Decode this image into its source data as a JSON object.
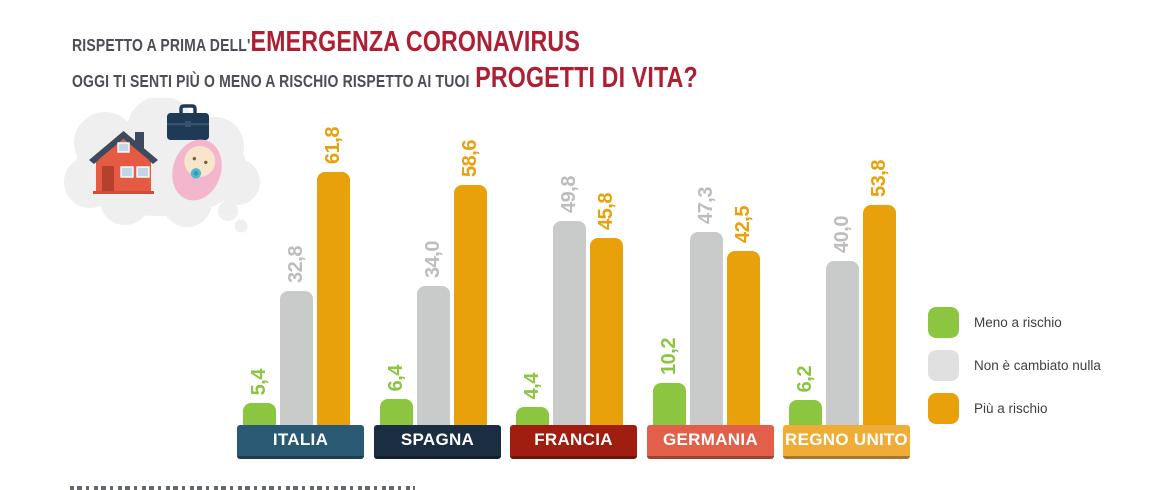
{
  "title": {
    "line1_small": "RISPETTO A PRIMA DELL'",
    "line1_big": "EMERGENZA CORONAVIRUS",
    "line2_small": "OGGI TI SENTI PIÙ O MENO A RISCHIO RISPETTO AI TUOI",
    "line2_big": "PROGETTI DI VITA?"
  },
  "colors": {
    "title_text": "#4d4d55",
    "title_accent": "#ae1f33",
    "meno_a_rischio": "#8cc540",
    "non_e_cambiato": "#c9caca",
    "piu_a_rischio": "#e8a00b"
  },
  "illustration": {
    "icons": [
      "thought-bubble-icon",
      "house-icon",
      "briefcase-icon",
      "baby-icon"
    ]
  },
  "chart_data": {
    "type": "bar",
    "title": "Rispetto a prima dell'emergenza coronavirus oggi ti senti più o meno a rischio rispetto ai tuoi progetti di vita?",
    "unit": "%",
    "grid": false,
    "legend_position": "right",
    "value_labels_rotated": true,
    "categories": [
      "ITALIA",
      "SPAGNA",
      "FRANCIA",
      "GERMANIA",
      "REGNO UNITO"
    ],
    "category_plate_colors": [
      "#2a5a73",
      "#1b2d41",
      "#a01e0f",
      "#e2604a",
      "#efad37"
    ],
    "series": [
      {
        "name": "Meno a rischio",
        "color": "#8cc540",
        "label_color": "#8cc540",
        "values": [
          5.4,
          6.4,
          4.4,
          10.2,
          6.2
        ],
        "display": [
          "5,4",
          "6,4",
          "4,4",
          "10,2",
          "6,2"
        ]
      },
      {
        "name": "Non è cambiato nulla",
        "color": "#c9caca",
        "label_color": "#bdbdbd",
        "values": [
          32.8,
          34.0,
          49.8,
          47.3,
          40.0
        ],
        "display": [
          "32,8",
          "34,0",
          "49,8",
          "47,3",
          "40,0"
        ]
      },
      {
        "name": "Più a rischio",
        "color": "#e8a00b",
        "label_color": "#e8a00b",
        "values": [
          61.8,
          58.6,
          45.8,
          42.5,
          53.8
        ],
        "display": [
          "61,8",
          "58,6",
          "45,8",
          "42,5",
          "53,8"
        ]
      }
    ]
  },
  "legend": {
    "items": [
      {
        "label": "Meno a rischio",
        "color": "#8cc540"
      },
      {
        "label": "Non è cambiato nulla",
        "color": "#e0e0e0"
      },
      {
        "label": "Più a rischio",
        "color": "#e8a00b"
      }
    ]
  }
}
